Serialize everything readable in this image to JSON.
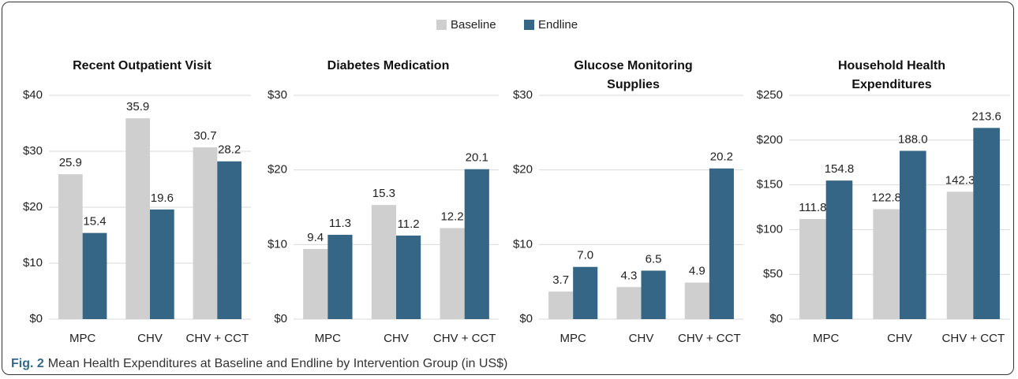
{
  "legend": [
    {
      "name": "Baseline",
      "color": "#cfcfcf"
    },
    {
      "name": "Endline",
      "color": "#356685"
    }
  ],
  "chart_data": [
    {
      "type": "bar",
      "title": "Recent Outpatient Visit",
      "categories": [
        "MPC",
        "CHV",
        "CHV + CCT"
      ],
      "series": [
        {
          "values": [
            25.9,
            35.9,
            30.7
          ],
          "value_labels": [
            "25.9",
            "35.9",
            "30.7"
          ]
        },
        {
          "values": [
            15.4,
            19.6,
            28.2
          ],
          "value_labels": [
            "15.4",
            "19.6",
            "28.2"
          ]
        }
      ],
      "ylim": [
        0,
        40
      ],
      "yticks": [
        {
          "value": 0,
          "label": "$0"
        },
        {
          "value": 10,
          "label": "$10"
        },
        {
          "value": 20,
          "label": "$20"
        },
        {
          "value": 30,
          "label": "$30"
        },
        {
          "value": 40,
          "label": "$40"
        }
      ],
      "grid": true
    },
    {
      "type": "bar",
      "title": "Diabetes Medication",
      "categories": [
        "MPC",
        "CHV",
        "CHV + CCT"
      ],
      "series": [
        {
          "values": [
            9.4,
            15.3,
            12.2
          ],
          "value_labels": [
            "9.4",
            "15.3",
            "12.2"
          ]
        },
        {
          "values": [
            11.3,
            11.2,
            20.1
          ],
          "value_labels": [
            "11.3",
            "11.2",
            "20.1"
          ]
        }
      ],
      "ylim": [
        0,
        30
      ],
      "yticks": [
        {
          "value": 0,
          "label": "$0"
        },
        {
          "value": 10,
          "label": "$10"
        },
        {
          "value": 20,
          "label": "$20"
        },
        {
          "value": 30,
          "label": "$30"
        }
      ],
      "grid": true
    },
    {
      "type": "bar",
      "title": "Glucose Monitoring Supplies",
      "categories": [
        "MPC",
        "CHV",
        "CHV + CCT"
      ],
      "series": [
        {
          "values": [
            3.7,
            4.3,
            4.9
          ],
          "value_labels": [
            "3.7",
            "4.3",
            "4.9"
          ]
        },
        {
          "values": [
            7.0,
            6.5,
            20.2
          ],
          "value_labels": [
            "7.0",
            "6.5",
            "20.2"
          ]
        }
      ],
      "ylim": [
        0,
        30
      ],
      "yticks": [
        {
          "value": 0,
          "label": "$0"
        },
        {
          "value": 10,
          "label": "$10"
        },
        {
          "value": 20,
          "label": "$20"
        },
        {
          "value": 30,
          "label": "$30"
        }
      ],
      "grid": true
    },
    {
      "type": "bar",
      "title": "Household Health Expenditures",
      "categories": [
        "MPC",
        "CHV",
        "CHV + CCT"
      ],
      "series": [
        {
          "values": [
            111.8,
            122.8,
            142.3
          ],
          "value_labels": [
            "111.8",
            "122.8",
            "142.3"
          ]
        },
        {
          "values": [
            154.8,
            188.0,
            213.6
          ],
          "value_labels": [
            "154.8",
            "188.0",
            "213.6"
          ]
        }
      ],
      "ylim": [
        0,
        250
      ],
      "yticks": [
        {
          "value": 0,
          "label": "$0"
        },
        {
          "value": 50,
          "label": "$50"
        },
        {
          "value": 100,
          "label": "$100"
        },
        {
          "value": 150,
          "label": "$150"
        },
        {
          "value": 200,
          "label": "$200"
        },
        {
          "value": 250,
          "label": "$250"
        }
      ],
      "grid": true
    }
  ],
  "caption": {
    "label": "Fig. 2",
    "text": "Mean Health Expenditures at Baseline and Endline by Intervention Group (in US$)"
  }
}
